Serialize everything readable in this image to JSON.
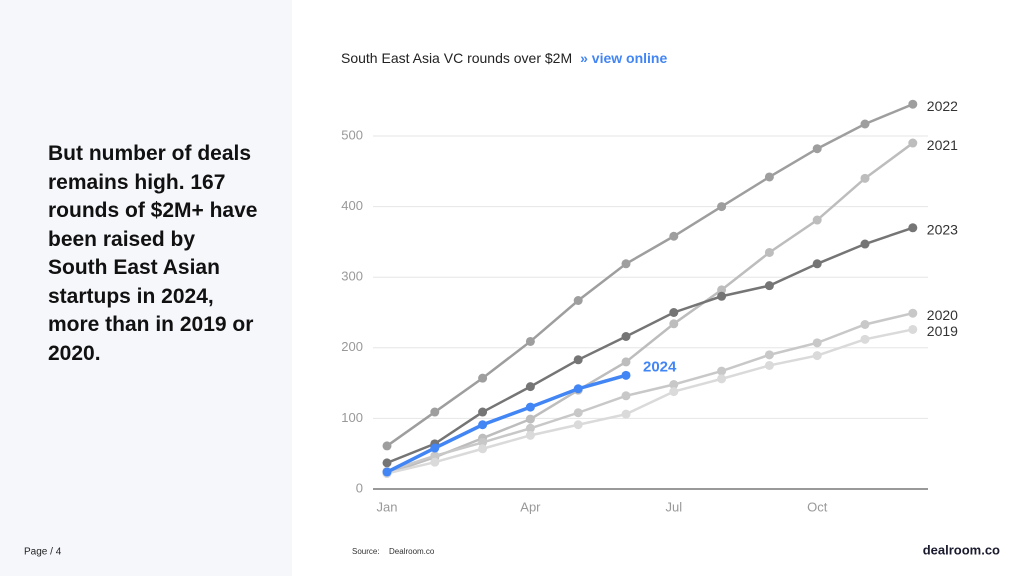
{
  "slide": {
    "body": "But number of deals remains high. 167 rounds of $2M+ have been raised by South East Asian startups in 2024, more than in 2019 or 2020.",
    "page": "Page / 4",
    "source_label": "Source:",
    "source": "Dealroom.co",
    "logo": "dealroom.co"
  },
  "chart_data": {
    "type": "line",
    "title": "South East Asia VC rounds over $2M",
    "link": "» view online",
    "categories": [
      "Jan",
      null,
      null,
      "Apr",
      null,
      null,
      "Jul",
      null,
      null,
      "Oct",
      null,
      null
    ],
    "ylim": [
      0,
      550
    ],
    "yticks": [
      0,
      100,
      200,
      300,
      400,
      500
    ],
    "grid": true,
    "series": [
      {
        "name": "2022",
        "color": "#9e9e9e",
        "values": [
          61,
          109,
          157,
          209,
          267,
          319,
          358,
          400,
          442,
          482,
          517,
          545
        ]
      },
      {
        "name": "2021",
        "color": "#bdbdbd",
        "values": [
          22,
          45,
          72,
          99,
          140,
          180,
          234,
          282,
          335,
          381,
          440,
          490
        ]
      },
      {
        "name": "2023",
        "color": "#757575",
        "values": [
          37,
          64,
          109,
          145,
          183,
          216,
          250,
          273,
          288,
          319,
          347,
          370
        ]
      },
      {
        "name": "2020",
        "color": "#c8c8c8",
        "values": [
          25,
          47,
          66,
          86,
          108,
          132,
          148,
          167,
          190,
          207,
          233,
          249
        ]
      },
      {
        "name": "2019",
        "color": "#dadada",
        "values": [
          22,
          38,
          57,
          76,
          91,
          106,
          138,
          156,
          175,
          189,
          212,
          226
        ]
      },
      {
        "name": "2024",
        "color": "#4285f4",
        "values": [
          24,
          58,
          91,
          116,
          142,
          161,
          null,
          null,
          null,
          null,
          null,
          null
        ]
      }
    ]
  }
}
